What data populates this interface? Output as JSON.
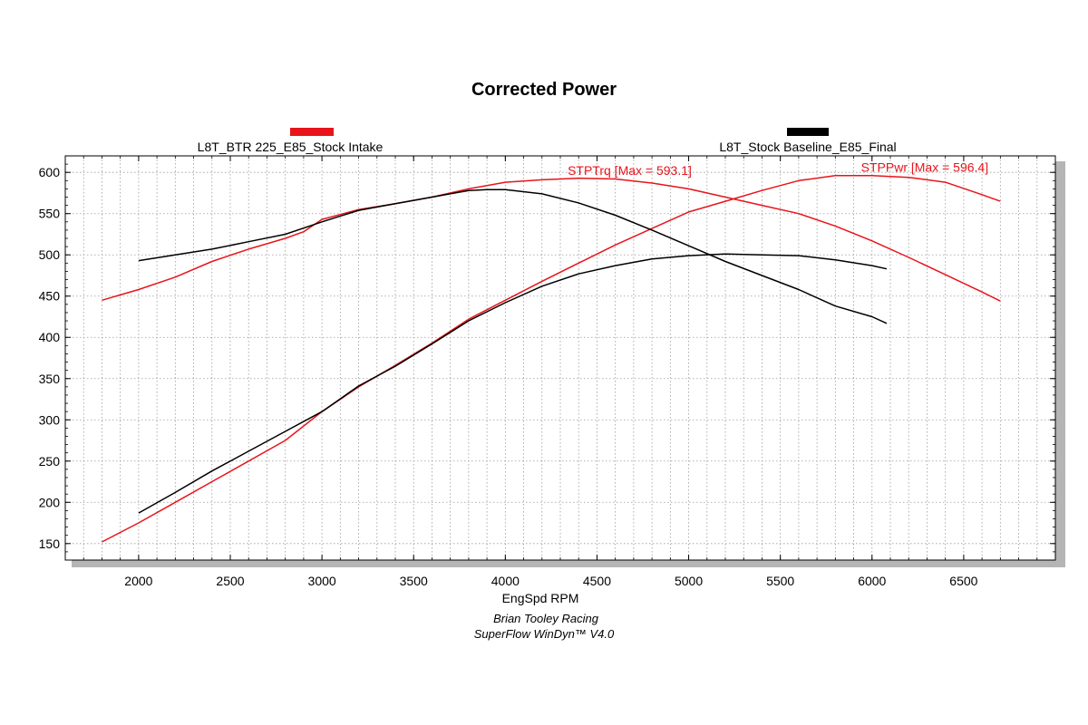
{
  "chart_data": {
    "type": "line",
    "title": "Corrected Power",
    "xlabel": "EngSpd RPM",
    "xlim": [
      1600,
      7000
    ],
    "ylim": [
      130,
      620
    ],
    "x_ticks": [
      2000,
      2500,
      3000,
      3500,
      4000,
      4500,
      5000,
      5500,
      6000,
      6500
    ],
    "y_ticks": [
      150,
      200,
      250,
      300,
      350,
      400,
      450,
      500,
      550,
      600
    ],
    "grid": true,
    "legend": [
      {
        "label": "L8T_BTR 225_E85_Stock Intake",
        "color": "#e8141b"
      },
      {
        "label": "L8T_Stock Baseline_E85_Final",
        "color": "#000000"
      }
    ],
    "annotations": [
      {
        "text": "STPTrq [Max = 593.1]",
        "x": 4340,
        "y": 597,
        "color": "#e8141b"
      },
      {
        "text": "STPPwr [Max = 596.4]",
        "x": 5940,
        "y": 601,
        "color": "#e8141b"
      }
    ],
    "series": [
      {
        "name": "STPTrq",
        "run": "L8T_BTR 225_E85_Stock Intake",
        "color": "#e8141b",
        "x": [
          1800,
          2000,
          2200,
          2400,
          2600,
          2800,
          2900,
          3000,
          3200,
          3400,
          3600,
          3800,
          4000,
          4200,
          4400,
          4600,
          4800,
          5000,
          5200,
          5400,
          5600,
          5800,
          6000,
          6200,
          6400,
          6600,
          6700
        ],
        "y": [
          445,
          458,
          473,
          492,
          507,
          520,
          528,
          543,
          555,
          562,
          570,
          580,
          588,
          591,
          593,
          592,
          587,
          580,
          570,
          560,
          550,
          535,
          517,
          497,
          476,
          455,
          444
        ]
      },
      {
        "name": "STPPwr",
        "run": "L8T_BTR 225_E85_Stock Intake",
        "color": "#e8141b",
        "x": [
          1800,
          2000,
          2200,
          2400,
          2600,
          2800,
          3000,
          3200,
          3400,
          3600,
          3800,
          4000,
          4200,
          4400,
          4600,
          4800,
          5000,
          5200,
          5400,
          5600,
          5800,
          6000,
          6200,
          6400,
          6600,
          6700
        ],
        "y": [
          152,
          175,
          200,
          225,
          250,
          275,
          310,
          340,
          366,
          393,
          422,
          445,
          468,
          490,
          512,
          532,
          552,
          565,
          578,
          590,
          596,
          596,
          594,
          588,
          573,
          565
        ]
      },
      {
        "name": "STPTrq",
        "run": "L8T_Stock Baseline_E85_Final",
        "color": "#000000",
        "x": [
          2000,
          2200,
          2400,
          2600,
          2800,
          3000,
          3200,
          3400,
          3600,
          3800,
          3900,
          4000,
          4200,
          4400,
          4600,
          4800,
          5000,
          5200,
          5400,
          5600,
          5800,
          6000,
          6080
        ],
        "y": [
          493,
          500,
          507,
          516,
          525,
          540,
          554,
          562,
          570,
          578,
          579,
          579,
          574,
          563,
          548,
          530,
          511,
          492,
          475,
          458,
          438,
          425,
          417
        ]
      },
      {
        "name": "STPPwr",
        "run": "L8T_Stock Baseline_E85_Final",
        "color": "#000000",
        "x": [
          2000,
          2200,
          2400,
          2600,
          2800,
          3000,
          3200,
          3400,
          3600,
          3800,
          4000,
          4200,
          4400,
          4600,
          4800,
          5000,
          5200,
          5400,
          5600,
          5800,
          6000,
          6080
        ],
        "y": [
          187,
          212,
          238,
          262,
          286,
          310,
          341,
          365,
          392,
          420,
          442,
          462,
          477,
          487,
          495,
          499,
          501,
          500,
          499,
          494,
          487,
          483
        ]
      }
    ]
  },
  "footer": {
    "credit_line1": "Brian Tooley Racing",
    "credit_line2": "SuperFlow WinDyn™  V4.0"
  }
}
